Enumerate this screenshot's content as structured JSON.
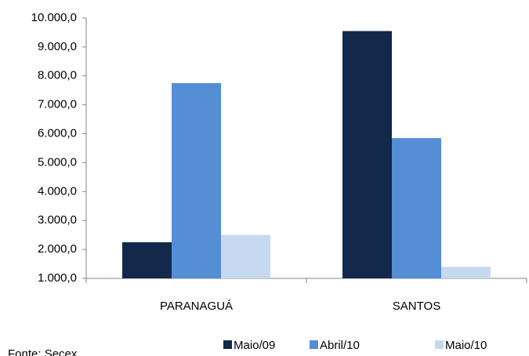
{
  "chart_data": {
    "type": "bar",
    "categories": [
      "PARANAGUÁ",
      "SANTOS"
    ],
    "series": [
      {
        "name": "Maio/09",
        "color": "#13294b",
        "values": [
          2250,
          9550
        ]
      },
      {
        "name": "Abril/10",
        "color": "#558ed5",
        "values": [
          7750,
          5850
        ]
      },
      {
        "name": "Maio/10",
        "color": "#c6d9f1",
        "values": [
          2500,
          1400
        ]
      }
    ],
    "ylim": [
      1000,
      10000
    ],
    "yticks": [
      {
        "value": 1000,
        "label": "1.000,0"
      },
      {
        "value": 2000,
        "label": "2.000,0"
      },
      {
        "value": 3000,
        "label": "3.000,0"
      },
      {
        "value": 4000,
        "label": "4.000,0"
      },
      {
        "value": 5000,
        "label": "5.000,0"
      },
      {
        "value": 6000,
        "label": "6.000,0"
      },
      {
        "value": 7000,
        "label": "7.000,0"
      },
      {
        "value": 8000,
        "label": "8.000,0"
      },
      {
        "value": 9000,
        "label": "9.000,0"
      },
      {
        "value": 10000,
        "label": "10.000,0"
      }
    ],
    "grid": false,
    "legend": "bottom",
    "source": "Fonte:  Secex"
  }
}
